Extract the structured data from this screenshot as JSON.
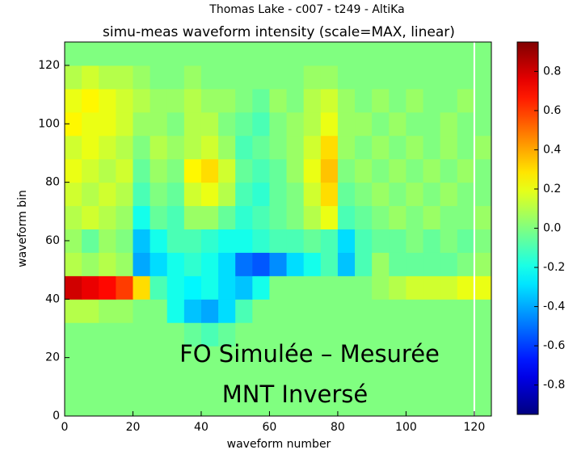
{
  "chart_data": {
    "type": "heatmap",
    "suptitle": "Thomas Lake - c007 - t249 - AltiKa",
    "title": "simu-meas waveform intensity (scale=MAX, linear)",
    "x_label": "waveform number",
    "y_label": "waveform bin",
    "x": [
      0,
      5,
      10,
      15,
      20,
      25,
      30,
      35,
      40,
      45,
      50,
      55,
      60,
      65,
      70,
      75,
      80,
      85,
      90,
      95,
      100,
      105,
      110,
      115,
      120,
      125
    ],
    "y": [
      0,
      8,
      16,
      24,
      32,
      40,
      48,
      56,
      64,
      72,
      80,
      88,
      96,
      104,
      112,
      120,
      128
    ],
    "z": [
      [
        0,
        0,
        0,
        0,
        0,
        0,
        0,
        0,
        0,
        0,
        0,
        0,
        0,
        0,
        0,
        0,
        0,
        0,
        0,
        0,
        0,
        0,
        0,
        0,
        0
      ],
      [
        0,
        0,
        0,
        0,
        0,
        0,
        0,
        0,
        0,
        0,
        0,
        0,
        0,
        0,
        0,
        0,
        0,
        0,
        0,
        0,
        0,
        0,
        0,
        0,
        0
      ],
      [
        0,
        0,
        0,
        0,
        0,
        0,
        0,
        0,
        0,
        0,
        0,
        0,
        0,
        0,
        0,
        0,
        0,
        0,
        0,
        0,
        0,
        0,
        0,
        0,
        0
      ],
      [
        0,
        0,
        0,
        0,
        0,
        0,
        0,
        -0.05,
        -0.1,
        -0.05,
        0,
        0,
        0,
        0,
        0,
        0,
        0,
        0,
        0,
        0,
        0,
        0,
        0,
        0,
        0
      ],
      [
        0.1,
        0.1,
        0.05,
        0.05,
        0,
        0,
        -0.2,
        -0.35,
        -0.4,
        -0.3,
        -0.1,
        0,
        0,
        0,
        0,
        0,
        0,
        0,
        0,
        0,
        0,
        0,
        0,
        0,
        0
      ],
      [
        0.8,
        0.75,
        0.7,
        0.6,
        0.3,
        -0.1,
        -0.2,
        -0.25,
        -0.2,
        -0.3,
        -0.35,
        -0.2,
        0,
        0,
        0,
        0,
        0,
        0,
        0.05,
        0.1,
        0.15,
        0.15,
        0.15,
        0.2,
        0.2
      ],
      [
        0.1,
        0.05,
        0.1,
        0.05,
        -0.4,
        -0.3,
        -0.2,
        -0.15,
        -0.2,
        -0.3,
        -0.5,
        -0.55,
        -0.45,
        -0.3,
        -0.2,
        -0.1,
        -0.35,
        -0.1,
        0.05,
        -0.05,
        -0.05,
        -0.05,
        -0.05,
        0,
        0.05
      ],
      [
        0.05,
        -0.05,
        0.05,
        0,
        -0.35,
        -0.2,
        -0.1,
        -0.1,
        -0.15,
        -0.2,
        -0.2,
        -0.15,
        -0.1,
        -0.1,
        -0.05,
        -0.1,
        -0.3,
        -0.1,
        -0.05,
        -0.05,
        0,
        -0.05,
        0,
        -0.05,
        0
      ],
      [
        0.1,
        0.15,
        0.1,
        0.05,
        -0.2,
        -0.05,
        -0.1,
        0.05,
        0.05,
        -0.05,
        -0.15,
        -0.1,
        -0.05,
        0,
        0.1,
        0.2,
        -0.1,
        -0.05,
        0,
        0.05,
        0,
        0.05,
        0,
        0,
        0.05
      ],
      [
        0.15,
        0.1,
        0.15,
        0.1,
        -0.1,
        0,
        -0.05,
        0.15,
        0.2,
        0.1,
        -0.1,
        -0.15,
        -0.05,
        0,
        0.15,
        0.3,
        -0.05,
        0,
        0.05,
        0,
        0.05,
        0,
        0.05,
        0,
        0
      ],
      [
        0.2,
        0.15,
        0.1,
        0.15,
        -0.05,
        0.05,
        0,
        0.25,
        0.3,
        0.15,
        -0.05,
        -0.1,
        -0.05,
        0.05,
        0.2,
        0.35,
        0,
        0.05,
        0,
        0.05,
        0,
        0.05,
        0,
        0.05,
        0
      ],
      [
        0.15,
        0.2,
        0.15,
        0.1,
        0,
        0.1,
        0.05,
        0.1,
        0.15,
        0.05,
        -0.1,
        -0.05,
        0,
        0.05,
        0.15,
        0.3,
        0.05,
        0,
        0.05,
        0,
        0.05,
        0,
        0.05,
        0,
        0.05
      ],
      [
        0.25,
        0.2,
        0.2,
        0.15,
        0.05,
        0.05,
        0,
        0.1,
        0.1,
        0,
        -0.05,
        -0.1,
        0,
        0.05,
        0.1,
        0.2,
        0.05,
        0.05,
        0,
        0.05,
        0,
        0,
        0.05,
        0,
        0
      ],
      [
        0.2,
        0.25,
        0.2,
        0.15,
        0.1,
        0.05,
        0.05,
        0.1,
        0.05,
        0.05,
        0,
        -0.05,
        0.05,
        0,
        0.1,
        0.15,
        0.05,
        0,
        0.05,
        0,
        0.05,
        0,
        0,
        0.05,
        0
      ],
      [
        0.1,
        0.15,
        0.1,
        0.1,
        0.05,
        0,
        0,
        0.05,
        0,
        0,
        0,
        0,
        0,
        0,
        0.05,
        0.05,
        0,
        0,
        0,
        0,
        0,
        0,
        0,
        0,
        0
      ],
      [
        0,
        0,
        0,
        0,
        0,
        0,
        0,
        0,
        0,
        0,
        0,
        0,
        0,
        0,
        0,
        0,
        0,
        0,
        0,
        0,
        0,
        0,
        0,
        0,
        0
      ]
    ],
    "colormap": "jet",
    "clim": [
      -0.95,
      0.95
    ],
    "cticks": [
      -0.8,
      -0.6,
      -0.4,
      -0.2,
      {
        "value": 0,
        "label": "0.0"
      },
      0.2,
      0.4,
      0.6,
      0.8
    ],
    "xlim": [
      0,
      125
    ],
    "xticks": [
      0,
      20,
      40,
      60,
      80,
      100,
      120
    ],
    "ylim": [
      0,
      128
    ],
    "yticks": [
      0,
      20,
      40,
      60,
      80,
      100,
      120
    ],
    "vline": {
      "x": 120,
      "color": "#ffffff"
    },
    "annotations": [
      "FO Simulée – Mesurée",
      "MNT Inversé"
    ]
  }
}
